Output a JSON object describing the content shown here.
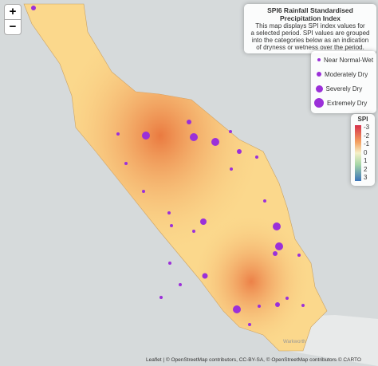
{
  "zoom": {
    "in": "+",
    "out": "−"
  },
  "info": {
    "title": "SPI6 Rainfall Standardised Precipitation Index",
    "lines": [
      "This map displays SPI index values for",
      "a selected period. SPI values are grouped",
      "into the categories below as an indication",
      "of dryness or wetness over the period."
    ]
  },
  "categories": [
    "Near Normal-Wet",
    "Moderately Dry",
    "Severely Dry",
    "Extremely Dry"
  ],
  "scale": {
    "title": "SPI",
    "ticks": [
      -3,
      -2,
      -1,
      0,
      1,
      2,
      3
    ]
  },
  "place": "Warkworth",
  "attribution": "Leaflet | © OpenStreetMap contributors, CC-BY-SA, © OpenStreetMap contributors © CARTO"
}
